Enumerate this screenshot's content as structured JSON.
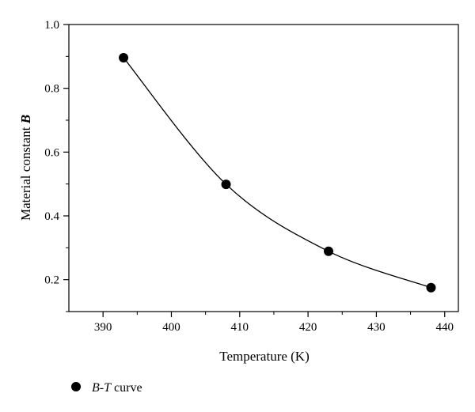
{
  "chart_data": {
    "type": "scatter",
    "title": "",
    "xlabel": "Temperature (K)",
    "ylabel_text": "Material constant ",
    "ylabel_var": "B",
    "xlim": [
      385,
      442
    ],
    "ylim": [
      0.1,
      1.0
    ],
    "x_ticks": [
      390,
      400,
      410,
      420,
      430,
      440
    ],
    "x_tick_labels": [
      "390",
      "400",
      "410",
      "420",
      "430",
      "440"
    ],
    "y_ticks": [
      0.2,
      0.4,
      0.6,
      0.8,
      1.0
    ],
    "y_tick_labels": [
      "0.2",
      "0.4",
      "0.6",
      "0.8",
      "1.0"
    ],
    "grid": false,
    "legend_position": "bottom-left",
    "series": [
      {
        "name": "B-T curve",
        "name_var1": "B",
        "name_sep": "-",
        "name_var2": "T",
        "name_suffix": " curve",
        "x": [
          393,
          408,
          423,
          438
        ],
        "y": [
          0.896,
          0.499,
          0.289,
          0.175
        ],
        "marker_color": "#000000",
        "fit_line": "smooth exponential decay"
      }
    ]
  }
}
